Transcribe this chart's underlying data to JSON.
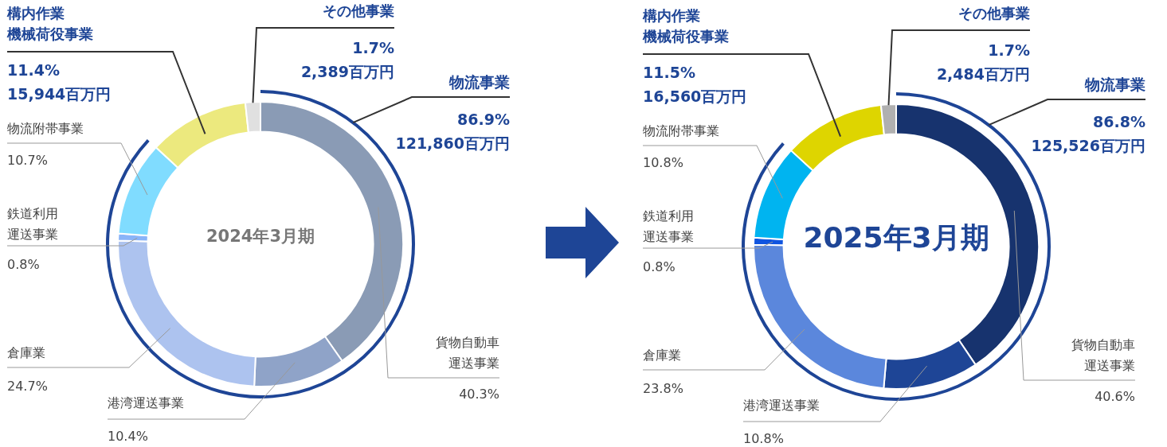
{
  "chart_data": [
    {
      "type": "donut",
      "title": "2024年3月期",
      "legend": false,
      "categories": [
        "貨物自動車運送事業",
        "港湾運送事業",
        "倉庫業",
        "鉄道利用運送事業",
        "物流附帯事業",
        "構内作業機械荷役事業",
        "その他事業"
      ],
      "values": [
        40.3,
        10.4,
        24.7,
        0.8,
        10.7,
        11.4,
        1.7
      ],
      "colors": [
        "#8a9bb5",
        "#8fa3c8",
        "#adc3ef",
        "#8ab4f8",
        "#80dcff",
        "#ece97e",
        "#e0e0e0"
      ],
      "value_labels": [
        "40.3%",
        "10.4%",
        "24.7%",
        "0.8%",
        "10.7%",
        "11.4%\n15,944百万円",
        "1.7%\n2,389百万円"
      ],
      "annotations": [
        "物流事業",
        "86.9%",
        "121,860百万円"
      ]
    },
    {
      "type": "donut",
      "title": "2025年3月期",
      "legend": false,
      "categories": [
        "貨物自動車運送事業",
        "港湾運送事業",
        "倉庫業",
        "鉄道利用運送事業",
        "物流附帯事業",
        "構内作業機械荷役事業",
        "その他事業"
      ],
      "values": [
        40.6,
        10.8,
        23.8,
        0.8,
        10.8,
        11.5,
        1.7
      ],
      "colors": [
        "#17336e",
        "#1e4596",
        "#5b87dc",
        "#1055e0",
        "#00b4f0",
        "#ded500",
        "#b0b0b0"
      ],
      "value_labels": [
        "40.6%",
        "10.8%",
        "23.8%",
        "0.8%",
        "10.8%",
        "11.5%\n16,560百万円",
        "1.7%\n2,484百万円"
      ],
      "annotations": [
        "物流事業",
        "86.8%",
        "125,526百万円"
      ]
    }
  ]
}
